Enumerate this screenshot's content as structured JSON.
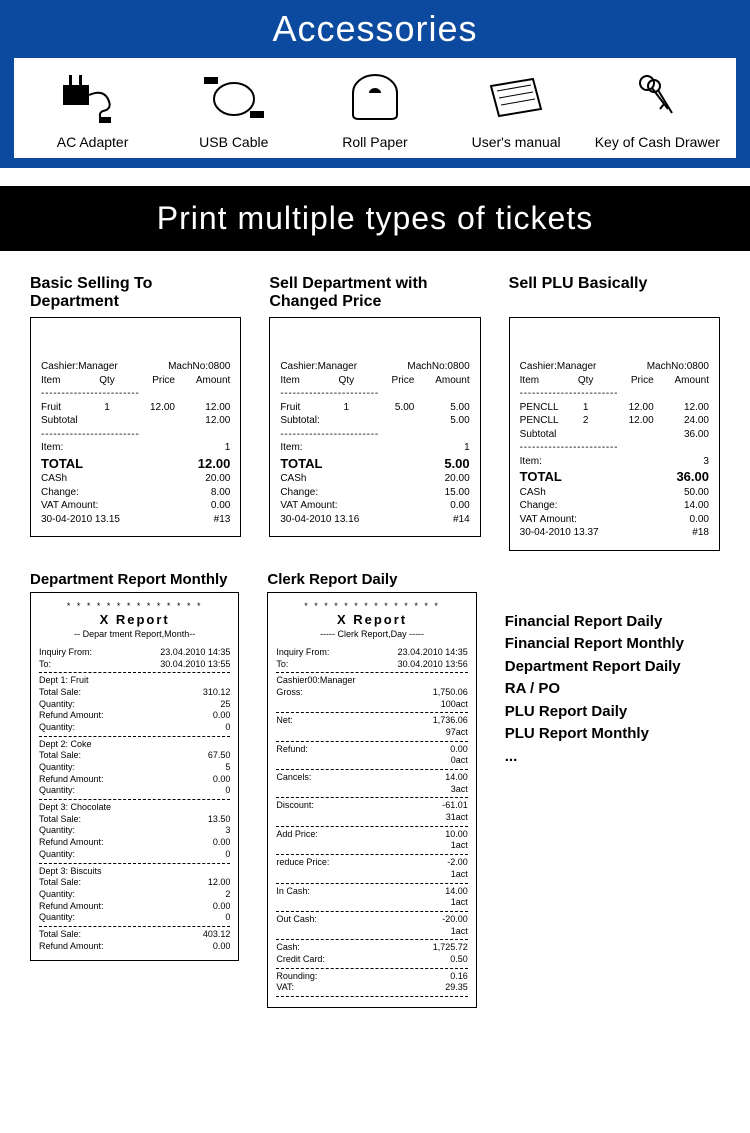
{
  "accessories": {
    "title": "Accessories",
    "items": [
      {
        "label": "AC Adapter"
      },
      {
        "label": "USB Cable"
      },
      {
        "label": "Roll Paper"
      },
      {
        "label": "User's manual"
      },
      {
        "label": "Key of Cash Drawer"
      }
    ]
  },
  "section2_title": "Print multiple types of tickets",
  "tickets": [
    {
      "title": "Basic Selling To Department",
      "cashier": "Cashier:Manager",
      "mach": "MachNo:0800",
      "cols": [
        "Item",
        "Qty",
        "Price",
        "Amount"
      ],
      "lines": [
        [
          "Fruit",
          "1",
          "12.00",
          "12.00"
        ]
      ],
      "subtotal_label": "Subtotal",
      "subtotal": "12.00",
      "item_label": "Item:",
      "item_count": "1",
      "total_label": "TOTAL",
      "total": "12.00",
      "footer": [
        [
          "CASh",
          "20.00"
        ],
        [
          "Change:",
          "8.00"
        ],
        [
          "VAT Amount:",
          "0.00"
        ],
        [
          "30-04-2010 13.15",
          "#13"
        ]
      ]
    },
    {
      "title": "Sell Department with Changed Price",
      "cashier": "Cashier:Manager",
      "mach": "MachNo:0800",
      "cols": [
        "Item",
        "Qty",
        "Price",
        "Amount"
      ],
      "lines": [
        [
          "Fruit",
          "1",
          "5.00",
          "5.00"
        ]
      ],
      "subtotal_label": "Subtotal:",
      "subtotal": "5.00",
      "item_label": "Item:",
      "item_count": "1",
      "total_label": "TOTAL",
      "total": "5.00",
      "footer": [
        [
          "CASh",
          "20.00"
        ],
        [
          "Change:",
          "15.00"
        ],
        [
          "VAT Amount:",
          "0.00"
        ],
        [
          "30-04-2010 13.16",
          "#14"
        ]
      ]
    },
    {
      "title": "Sell PLU Basically",
      "cashier": "Cashier:Manager",
      "mach": "MachNo:0800",
      "cols": [
        "Item",
        "Qty",
        "Price",
        "Amount"
      ],
      "lines": [
        [
          "PENCLL",
          "1",
          "12.00",
          "12.00"
        ],
        [
          "PENCLL",
          "2",
          "12.00",
          "24.00"
        ]
      ],
      "subtotal_label": "Subtotal",
      "subtotal": "36.00",
      "item_label": "Item:",
      "item_count": "3",
      "total_label": "TOTAL",
      "total": "36.00",
      "footer": [
        [
          "CASh",
          "50.00"
        ],
        [
          "Change:",
          "14.00"
        ],
        [
          "VAT Amount:",
          "0.00"
        ],
        [
          "30-04-2010 13.37",
          "#18"
        ]
      ]
    }
  ],
  "dept_report": {
    "title": "Department  Report  Monthly",
    "xreport": "X  Report",
    "sub": "-- Depar tment Report,Month--",
    "inq_from_l": "Inquiry From:",
    "inq_from": "23.04.2010 14:35",
    "to_l": "To:",
    "to": "30.04.2010 13:55",
    "depts": [
      {
        "name": "Dept 1:    Fruit",
        "rows": [
          [
            "Total Sale:",
            "310.12"
          ],
          [
            "Quantity:",
            "25"
          ],
          [
            "Refund Amount:",
            "0.00"
          ],
          [
            "Quantity:",
            "0"
          ]
        ]
      },
      {
        "name": "Dept 2:    Coke",
        "rows": [
          [
            "Total Sale:",
            "67.50"
          ],
          [
            "Quantity:",
            "5"
          ],
          [
            "Refund Amount:",
            "0.00"
          ],
          [
            "Quantity:",
            "0"
          ]
        ]
      },
      {
        "name": "Dept 3:    Chocolate",
        "rows": [
          [
            "Total Sale:",
            "13.50"
          ],
          [
            "Quantity:",
            "3"
          ],
          [
            "Refund Amount:",
            "0.00"
          ],
          [
            "Quantity:",
            "0"
          ]
        ]
      },
      {
        "name": "Dept 3:    Biscuits",
        "rows": [
          [
            "Total Sale:",
            "12.00"
          ],
          [
            "Quantity:",
            "2"
          ],
          [
            "Refund Amount:",
            "0.00"
          ],
          [
            "Quantity:",
            "0"
          ]
        ]
      }
    ],
    "tot": [
      [
        "Total Sale:",
        "403.12"
      ],
      [
        "Refund Amount:",
        "0.00"
      ]
    ]
  },
  "clerk_report": {
    "title": "Clerk Report Daily",
    "xreport": "X  Report",
    "sub": "----- Clerk Report,Day -----",
    "inq_from_l": "Inquiry From:",
    "inq_from": "23.04.2010 14:35",
    "to_l": "To:",
    "to": "30.04.2010 13:56",
    "cashier": "Cashier00:Manager",
    "sections": [
      [
        [
          "Gross:",
          "1,750.06"
        ],
        [
          "",
          "100act"
        ]
      ],
      [
        [
          "Net:",
          "1,736.06"
        ],
        [
          "",
          "97act"
        ]
      ],
      [
        [
          "Refund:",
          "0.00"
        ],
        [
          "",
          "0act"
        ]
      ],
      [
        [
          "Cancels:",
          "14.00"
        ],
        [
          "",
          "3act"
        ]
      ],
      [
        [
          "Discount:",
          "-61.01"
        ],
        [
          "",
          "31act"
        ]
      ],
      [
        [
          "Add Price:",
          "10.00"
        ],
        [
          "",
          "1act"
        ]
      ],
      [
        [
          "reduce Price:",
          "-2.00"
        ],
        [
          "",
          "1act"
        ]
      ],
      [
        [
          "In Cash:",
          "14.00"
        ],
        [
          "",
          "1act"
        ]
      ],
      [
        [
          "Out Cash:",
          "-20.00"
        ],
        [
          "",
          "1act"
        ]
      ],
      [
        [
          "Cash:",
          "1,725.72"
        ],
        [
          "Credit Card:",
          "0.50"
        ]
      ],
      [
        [
          "Rounding:",
          "0.16"
        ],
        [
          "VAT:",
          "29.35"
        ]
      ]
    ]
  },
  "other_reports": [
    "Financial Report Daily",
    "Financial Report Monthly",
    "Department Report Daily",
    "RA / PO",
    "PLU Report Daily",
    "PLU Report Monthly",
    "..."
  ]
}
